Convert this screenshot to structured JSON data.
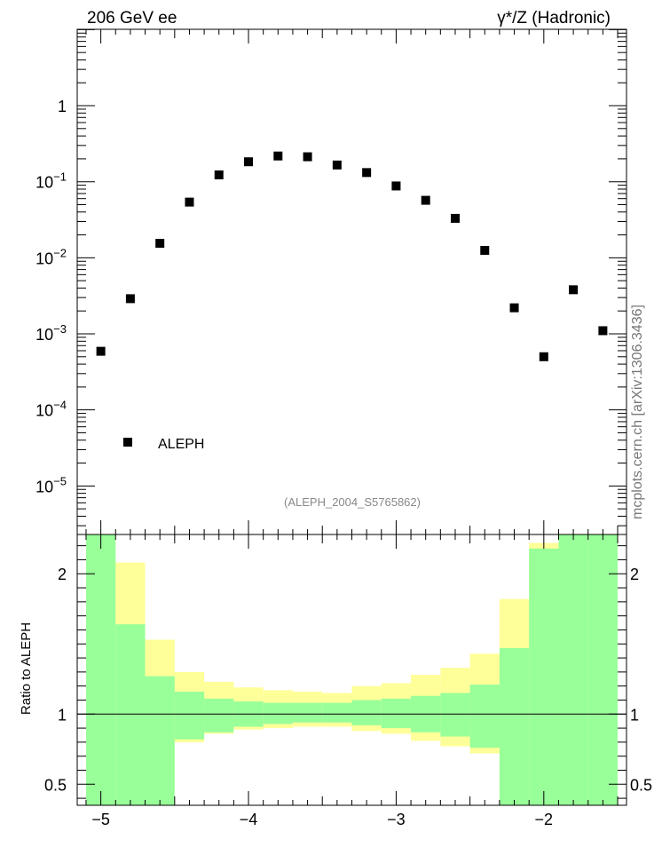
{
  "header": {
    "left_title": "206 GeV ee",
    "right_title": "γ*/Z (Hadronic)"
  },
  "watermark": "mcplots.cern.ch [arXiv:1306.3436]",
  "analysis_tag": "(ALEPH_2004_S5765862)",
  "colors": {
    "points": "#000000",
    "band_inner": "#99ff99",
    "band_outer": "#ffff99",
    "frame": "#000000",
    "watermark": "#777777",
    "tag": "#888888"
  },
  "chart_data": [
    {
      "type": "scatter",
      "panel": "main",
      "yscale": "log",
      "xlim": [
        -5.16,
        -1.44
      ],
      "ylim": [
        2.3e-06,
        10.1
      ],
      "ytick_values": [
        1e-05,
        0.0001,
        0.001,
        0.01,
        0.1,
        1
      ],
      "ytick_labels": [
        "10−5",
        "10−4",
        "10−3",
        "10−2",
        "10−1",
        "1"
      ],
      "legend": {
        "label": "ALEPH",
        "placement": "bottom-left"
      },
      "series": [
        {
          "name": "ALEPH",
          "x": [
            -5.0,
            -4.8,
            -4.6,
            -4.4,
            -4.2,
            -4.0,
            -3.8,
            -3.6,
            -3.4,
            -3.2,
            -3.0,
            -2.8,
            -2.6,
            -2.4,
            -2.2,
            -2.0,
            -1.8,
            -1.6
          ],
          "y": [
            0.00059,
            0.0029,
            0.0155,
            0.054,
            0.123,
            0.183,
            0.218,
            0.213,
            0.166,
            0.132,
            0.088,
            0.057,
            0.033,
            0.0125,
            0.0022,
            0.0005,
            0.0038,
            0.0011
          ]
        }
      ]
    },
    {
      "type": "area",
      "panel": "ratio",
      "ylabel": "Ratio to ALEPH",
      "xlim": [
        -5.16,
        -1.44
      ],
      "ylim": [
        0.35,
        2.28
      ],
      "xtick_values": [
        -5,
        -4,
        -3,
        -2
      ],
      "xtick_labels": [
        "−5",
        "−4",
        "−3",
        "−2"
      ],
      "ytick_values": [
        0.5,
        1,
        2
      ],
      "ytick_labels": [
        "0.5",
        "1",
        "2"
      ],
      "reference_line": 1,
      "bins": {
        "edges": [
          -5.1,
          -4.9,
          -4.7,
          -4.5,
          -4.3,
          -4.1,
          -3.9,
          -3.7,
          -3.5,
          -3.3,
          -3.1,
          -2.9,
          -2.7,
          -2.5,
          -2.3,
          -2.1,
          -1.9,
          -1.7,
          -1.5
        ],
        "inner_lo": [
          0.35,
          0.35,
          0.35,
          0.82,
          0.87,
          0.91,
          0.93,
          0.94,
          0.94,
          0.92,
          0.9,
          0.87,
          0.84,
          0.76,
          0.35,
          0.35,
          0.35,
          0.35
        ],
        "inner_hi": [
          2.28,
          1.64,
          1.27,
          1.16,
          1.11,
          1.09,
          1.08,
          1.08,
          1.08,
          1.1,
          1.11,
          1.13,
          1.15,
          1.21,
          1.47,
          2.18,
          2.28,
          2.28
        ],
        "outer_lo": [
          0.35,
          0.38,
          0.58,
          0.8,
          0.86,
          0.89,
          0.9,
          0.91,
          0.91,
          0.88,
          0.86,
          0.81,
          0.77,
          0.72,
          0.64,
          0.35,
          0.35,
          0.35
        ],
        "outer_hi": [
          2.28,
          2.08,
          1.53,
          1.3,
          1.23,
          1.19,
          1.17,
          1.16,
          1.15,
          1.2,
          1.22,
          1.28,
          1.33,
          1.43,
          1.82,
          2.22,
          2.28,
          2.28
        ]
      }
    }
  ]
}
